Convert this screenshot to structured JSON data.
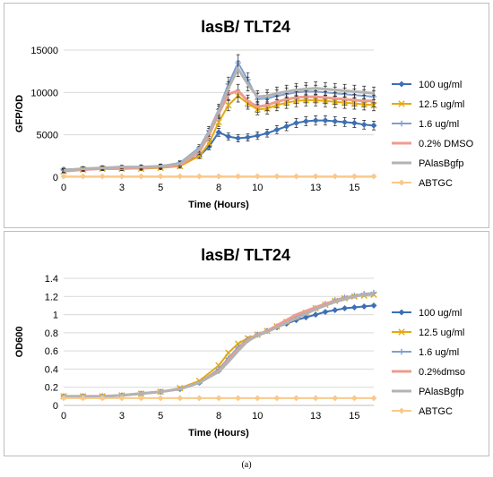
{
  "caption": "(a)",
  "chart_data": [
    {
      "type": "line",
      "title": "lasB/ TLT24",
      "xlabel": "Time (Hours)",
      "ylabel": "GFP/OD",
      "ylim": [
        0,
        15000
      ],
      "xlim": [
        0,
        16
      ],
      "x_ticks": [
        0,
        3,
        5,
        8,
        10,
        13,
        15
      ],
      "y_ticks": [
        0,
        5000,
        10000,
        15000
      ],
      "y_tick_labels": [
        "0",
        "5000",
        "10000",
        "15000"
      ],
      "grid": "horizontal",
      "legend_position": "right",
      "error_bars": true,
      "series": [
        {
          "name": "100 ug/ml",
          "color": "#3d6fb5",
          "marker": "diamond",
          "x": [
            0,
            1,
            2,
            3,
            4,
            5,
            6,
            7,
            7.5,
            8,
            8.5,
            9,
            9.5,
            10,
            10.5,
            11,
            11.5,
            12,
            12.5,
            13,
            13.5,
            14,
            14.5,
            15,
            15.5,
            16
          ],
          "y": [
            900,
            1000,
            1100,
            1100,
            1200,
            1300,
            1500,
            2500,
            3600,
            5300,
            4800,
            4600,
            4700,
            4900,
            5200,
            5600,
            6000,
            6400,
            6600,
            6700,
            6700,
            6600,
            6500,
            6400,
            6200,
            6100
          ]
        },
        {
          "name": "12.5 ug/ml",
          "color": "#e3a90f",
          "marker": "x",
          "x": [
            0,
            1,
            2,
            3,
            4,
            5,
            6,
            7,
            7.5,
            8,
            8.5,
            9,
            9.5,
            10,
            10.5,
            11,
            11.5,
            12,
            12.5,
            13,
            13.5,
            14,
            14.5,
            15,
            15.5,
            16
          ],
          "y": [
            700,
            900,
            1000,
            1000,
            1000,
            1100,
            1300,
            2500,
            4000,
            6500,
            8500,
            9600,
            8700,
            8000,
            8100,
            8500,
            8800,
            9000,
            9100,
            9100,
            9000,
            8900,
            8800,
            8700,
            8600,
            8500
          ]
        },
        {
          "name": "1.6 ug/ml",
          "color": "#7f9fd0",
          "marker": "plus",
          "x": [
            0,
            1,
            2,
            3,
            4,
            5,
            6,
            7,
            7.5,
            8,
            8.5,
            9,
            9.5,
            10,
            10.5,
            11,
            11.5,
            12,
            12.5,
            13,
            13.5,
            14,
            14.5,
            15,
            15.5,
            16
          ],
          "y": [
            800,
            1000,
            1100,
            1100,
            1200,
            1300,
            1700,
            3500,
            5500,
            8000,
            11000,
            13500,
            11500,
            9200,
            9300,
            9600,
            9800,
            10000,
            10100,
            10100,
            10000,
            9900,
            9800,
            9700,
            9600,
            9500
          ]
        },
        {
          "name": "0.2% DMSO",
          "color": "#ee9c8f",
          "marker": "line",
          "x": [
            0,
            1,
            2,
            3,
            4,
            5,
            6,
            7,
            7.5,
            8,
            8.5,
            9,
            9.5,
            10,
            10.5,
            11,
            11.5,
            12,
            12.5,
            13,
            13.5,
            14,
            14.5,
            15,
            15.5,
            16
          ],
          "y": [
            700,
            900,
            1000,
            1000,
            1100,
            1200,
            1400,
            3000,
            5000,
            7500,
            9800,
            10200,
            9000,
            8300,
            8500,
            8900,
            9200,
            9400,
            9500,
            9500,
            9400,
            9300,
            9200,
            9100,
            9000,
            9000
          ]
        },
        {
          "name": "PAlasBgfp",
          "color": "#b3b3b3",
          "marker": "line",
          "x": [
            0,
            1,
            2,
            3,
            4,
            5,
            6,
            7,
            7.5,
            8,
            8.5,
            9,
            9.5,
            10,
            10.5,
            11,
            11.5,
            12,
            12.5,
            13,
            13.5,
            14,
            14.5,
            15,
            15.5,
            16
          ],
          "y": [
            800,
            1000,
            1100,
            1200,
            1200,
            1300,
            1600,
            3300,
            5300,
            7800,
            10500,
            12800,
            11000,
            9500,
            9600,
            9900,
            10100,
            10300,
            10400,
            10500,
            10400,
            10300,
            10200,
            10100,
            10000,
            9900
          ]
        },
        {
          "name": "ABTGC",
          "color": "#f8c98b",
          "marker": "diamond",
          "x": [
            0,
            1,
            2,
            3,
            4,
            5,
            6,
            7,
            8,
            9,
            10,
            11,
            12,
            13,
            14,
            15,
            16
          ],
          "y": [
            100,
            100,
            100,
            100,
            100,
            100,
            100,
            100,
            100,
            100,
            100,
            100,
            100,
            100,
            100,
            100,
            100
          ]
        }
      ]
    },
    {
      "type": "line",
      "title": "lasB/ TLT24",
      "xlabel": "Time (Hours)",
      "ylabel": "OD600",
      "ylim": [
        0,
        1.4
      ],
      "xlim": [
        0,
        16
      ],
      "x_ticks": [
        0,
        3,
        5,
        8,
        10,
        13,
        15
      ],
      "y_ticks": [
        0,
        0.2,
        0.4,
        0.6,
        0.8,
        1,
        1.2,
        1.4
      ],
      "y_tick_labels": [
        "0",
        "0.2",
        "0.4",
        "0.6",
        "0.8",
        "1",
        "1.2",
        "1.4"
      ],
      "grid": "horizontal",
      "legend_position": "right",
      "series": [
        {
          "name": "100 ug/ml",
          "color": "#3d6fb5",
          "marker": "diamond",
          "x": [
            0,
            1,
            2,
            3,
            4,
            5,
            6,
            7,
            8,
            8.5,
            9,
            9.5,
            10,
            10.5,
            11,
            11.5,
            12,
            12.5,
            13,
            13.5,
            14,
            14.5,
            15,
            15.5,
            16
          ],
          "y": [
            0.1,
            0.1,
            0.1,
            0.11,
            0.13,
            0.15,
            0.18,
            0.25,
            0.38,
            0.5,
            0.62,
            0.72,
            0.78,
            0.82,
            0.86,
            0.9,
            0.94,
            0.97,
            1.0,
            1.03,
            1.05,
            1.07,
            1.08,
            1.09,
            1.1
          ]
        },
        {
          "name": "12.5 ug/ml",
          "color": "#e3a90f",
          "marker": "x",
          "x": [
            0,
            1,
            2,
            3,
            4,
            5,
            6,
            7,
            8,
            8.5,
            9,
            9.5,
            10,
            10.5,
            11,
            11.5,
            12,
            12.5,
            13,
            13.5,
            14,
            14.5,
            15,
            15.5,
            16
          ],
          "y": [
            0.1,
            0.1,
            0.1,
            0.11,
            0.13,
            0.15,
            0.19,
            0.27,
            0.44,
            0.58,
            0.68,
            0.74,
            0.78,
            0.82,
            0.87,
            0.92,
            0.97,
            1.02,
            1.07,
            1.11,
            1.15,
            1.18,
            1.2,
            1.21,
            1.22
          ]
        },
        {
          "name": "1.6 ug/ml",
          "color": "#7f9fd0",
          "marker": "plus",
          "x": [
            0,
            1,
            2,
            3,
            4,
            5,
            6,
            7,
            8,
            8.5,
            9,
            9.5,
            10,
            10.5,
            11,
            11.5,
            12,
            12.5,
            13,
            13.5,
            14,
            14.5,
            15,
            15.5,
            16
          ],
          "y": [
            0.1,
            0.1,
            0.1,
            0.11,
            0.13,
            0.15,
            0.18,
            0.25,
            0.4,
            0.52,
            0.64,
            0.73,
            0.78,
            0.82,
            0.87,
            0.92,
            0.97,
            1.02,
            1.07,
            1.12,
            1.16,
            1.19,
            1.21,
            1.23,
            1.24
          ]
        },
        {
          "name": "0.2%dmso",
          "color": "#ee9c8f",
          "marker": "line",
          "x": [
            0,
            1,
            2,
            3,
            4,
            5,
            6,
            7,
            8,
            8.5,
            9,
            9.5,
            10,
            10.5,
            11,
            11.5,
            12,
            12.5,
            13,
            13.5,
            14,
            14.5,
            15,
            15.5,
            16
          ],
          "y": [
            0.1,
            0.1,
            0.1,
            0.11,
            0.13,
            0.15,
            0.18,
            0.25,
            0.38,
            0.5,
            0.62,
            0.72,
            0.78,
            0.82,
            0.88,
            0.94,
            1.0,
            1.04,
            1.08,
            1.12,
            1.15,
            1.18,
            1.2,
            1.22,
            1.23
          ]
        },
        {
          "name": "PAlasBgfp",
          "color": "#b3b3b3",
          "marker": "line",
          "x": [
            0,
            1,
            2,
            3,
            4,
            5,
            6,
            7,
            8,
            8.5,
            9,
            9.5,
            10,
            10.5,
            11,
            11.5,
            12,
            12.5,
            13,
            13.5,
            14,
            14.5,
            15,
            15.5,
            16
          ],
          "y": [
            0.1,
            0.1,
            0.1,
            0.11,
            0.13,
            0.15,
            0.18,
            0.25,
            0.37,
            0.48,
            0.6,
            0.71,
            0.77,
            0.81,
            0.86,
            0.91,
            0.96,
            1.01,
            1.06,
            1.1,
            1.14,
            1.17,
            1.2,
            1.22,
            1.23
          ]
        },
        {
          "name": "ABTGC",
          "color": "#f8c98b",
          "marker": "diamond",
          "x": [
            0,
            1,
            2,
            3,
            4,
            5,
            6,
            7,
            8,
            9,
            10,
            11,
            12,
            13,
            14,
            15,
            16
          ],
          "y": [
            0.08,
            0.08,
            0.08,
            0.08,
            0.08,
            0.08,
            0.08,
            0.08,
            0.08,
            0.08,
            0.08,
            0.08,
            0.08,
            0.08,
            0.08,
            0.08,
            0.08
          ]
        }
      ]
    }
  ]
}
